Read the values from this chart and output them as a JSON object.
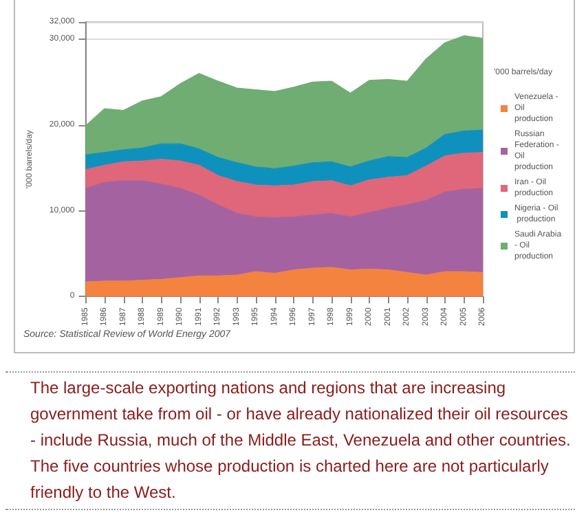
{
  "chart_data": {
    "type": "area",
    "stacked": true,
    "ylabel": "'000 barrels/day",
    "legend_title": "'000 barrels/day",
    "categories": [
      "1985",
      "1986",
      "1987",
      "1988",
      "1989",
      "1990",
      "1991",
      "1992",
      "1993",
      "1995",
      "1994",
      "1996",
      "1997",
      "1998",
      "1999",
      "2000",
      "2001",
      "2002",
      "2003",
      "2004",
      "2005",
      "2006"
    ],
    "series": [
      {
        "name": "Venezuela - Oil production",
        "color": "#f4833f",
        "values": [
          1700,
          1800,
          1800,
          1900,
          2000,
          2200,
          2400,
          2400,
          2500,
          2900,
          2700,
          3100,
          3300,
          3400,
          3100,
          3200,
          3100,
          2800,
          2500,
          2900,
          2900,
          2800
        ]
      },
      {
        "name": "Russian Federation - Oil production",
        "color": "#a463a0",
        "values": [
          10900,
          11500,
          11700,
          11600,
          11100,
          10400,
          9400,
          8300,
          7200,
          6400,
          6500,
          6200,
          6200,
          6300,
          6200,
          6600,
          7200,
          7900,
          8700,
          9300,
          9600,
          9800
        ]
      },
      {
        "name": "Iran - Oil production",
        "color": "#e0667a",
        "values": [
          2200,
          2000,
          2200,
          2300,
          2900,
          3200,
          3500,
          3400,
          3700,
          3700,
          3700,
          3700,
          3900,
          3800,
          3600,
          3800,
          3600,
          3400,
          4000,
          4200,
          4200,
          4200
        ]
      },
      {
        "name": "Nigeria - Oil production",
        "color": "#0e92bd",
        "values": [
          1700,
          1500,
          1400,
          1500,
          1800,
          2000,
          1900,
          2100,
          2200,
          2100,
          2000,
          2200,
          2200,
          2200,
          2200,
          2200,
          2400,
          2100,
          2100,
          2500,
          2600,
          2600
        ]
      },
      {
        "name": "Saudi Arabia - Oil production",
        "color": "#6fad72",
        "values": [
          3400,
          5100,
          4600,
          5500,
          5500,
          7000,
          8800,
          8900,
          8700,
          9000,
          9000,
          9200,
          9400,
          9400,
          8600,
          9400,
          9000,
          8900,
          10400,
          10700,
          11100,
          10700
        ]
      }
    ],
    "ylim": [
      0,
      32000
    ],
    "yticks": [
      0,
      {
        "value": 10000,
        "label": "10,000"
      },
      {
        "value": 20000,
        "label": "20,000"
      },
      {
        "value": 30000,
        "label": "30,000"
      },
      {
        "value": 32000,
        "label": "32,000"
      }
    ],
    "grid": "y",
    "legend": "right",
    "marker": "none",
    "annotations": [
      "Source: Statistical Review of World Energy 2007",
      "The large-scale exporting nations and regions that are increasing government take from oil - or have already nationalized their oil resources - include Russia, much of the Middle East, Venezuela and other countries. The five countries whose production is charted here are not particularly friendly to the West."
    ]
  }
}
